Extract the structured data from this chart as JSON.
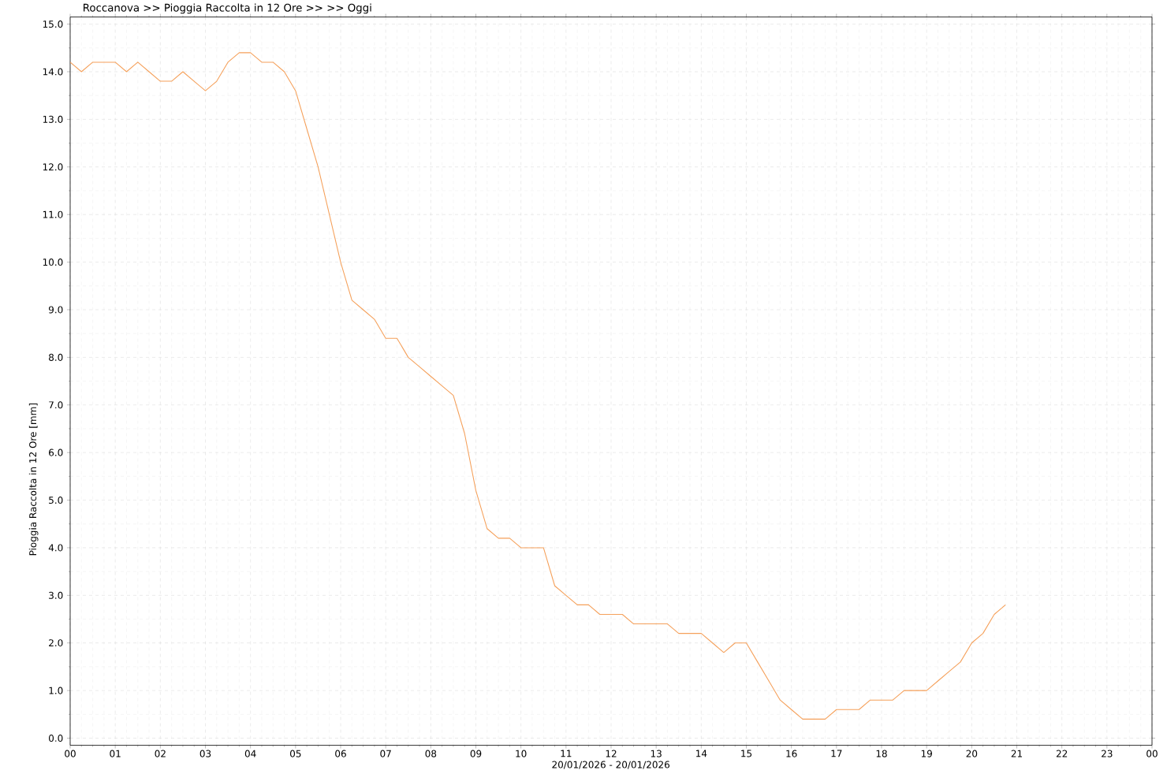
{
  "chart_data": {
    "type": "line",
    "title": "Roccanova >> Pioggia Raccolta in 12 Ore >>  >> Oggi",
    "xlabel": "20/01/2026 - 20/01/2026",
    "ylabel": "Pioggia Raccolta in 12 Ore [mm]",
    "x": [
      0,
      0.25,
      0.5,
      0.75,
      1,
      1.25,
      1.5,
      1.75,
      2,
      2.25,
      2.5,
      2.75,
      3,
      3.25,
      3.5,
      3.75,
      4,
      4.25,
      4.5,
      4.75,
      5,
      5.25,
      5.5,
      5.75,
      6,
      6.25,
      6.5,
      6.75,
      7,
      7.25,
      7.5,
      7.75,
      8,
      8.25,
      8.5,
      8.75,
      9,
      9.25,
      9.5,
      9.75,
      10,
      10.25,
      10.5,
      10.75,
      11,
      11.25,
      11.5,
      11.75,
      12,
      12.25,
      12.5,
      12.75,
      13,
      13.25,
      13.5,
      13.75,
      14,
      14.25,
      14.5,
      14.75,
      15,
      15.25,
      15.5,
      15.75,
      16,
      16.25,
      16.5,
      16.75,
      17,
      17.25,
      17.5,
      17.75,
      18,
      18.25,
      18.5,
      18.75,
      19,
      19.25,
      19.5,
      19.75,
      20,
      20.25,
      20.5,
      20.75
    ],
    "series": [
      {
        "color": "#f5a05a",
        "values": [
          14.2,
          14.0,
          14.2,
          14.2,
          14.2,
          14.0,
          14.2,
          14.0,
          13.8,
          13.8,
          14.0,
          13.8,
          13.6,
          13.8,
          14.2,
          14.4,
          14.4,
          14.2,
          14.2,
          14.0,
          13.6,
          12.8,
          12.0,
          11.0,
          10.0,
          9.2,
          9.0,
          8.8,
          8.4,
          8.4,
          8.0,
          7.8,
          7.6,
          7.4,
          7.2,
          6.4,
          5.2,
          4.4,
          4.2,
          4.2,
          4.0,
          4.0,
          4.0,
          3.2,
          3.0,
          2.8,
          2.8,
          2.6,
          2.6,
          2.6,
          2.4,
          2.4,
          2.4,
          2.4,
          2.2,
          2.2,
          2.2,
          2.0,
          1.8,
          2.0,
          2.0,
          1.6,
          1.2,
          0.8,
          0.6,
          0.4,
          0.4,
          0.4,
          0.6,
          0.6,
          0.6,
          0.8,
          0.8,
          0.8,
          1.0,
          1.0,
          1.0,
          1.2,
          1.4,
          1.6,
          2.0,
          2.2,
          2.6,
          2.8
        ]
      }
    ],
    "xlim": [
      0,
      24
    ],
    "xticks": [
      {
        "value": 0,
        "label": "00"
      },
      {
        "value": 1,
        "label": "01"
      },
      {
        "value": 2,
        "label": "02"
      },
      {
        "value": 3,
        "label": "03"
      },
      {
        "value": 4,
        "label": "04"
      },
      {
        "value": 5,
        "label": "05"
      },
      {
        "value": 6,
        "label": "06"
      },
      {
        "value": 7,
        "label": "07"
      },
      {
        "value": 8,
        "label": "08"
      },
      {
        "value": 9,
        "label": "09"
      },
      {
        "value": 10,
        "label": "10"
      },
      {
        "value": 11,
        "label": "11"
      },
      {
        "value": 12,
        "label": "12"
      },
      {
        "value": 13,
        "label": "13"
      },
      {
        "value": 14,
        "label": "14"
      },
      {
        "value": 15,
        "label": "15"
      },
      {
        "value": 16,
        "label": "16"
      },
      {
        "value": 17,
        "label": "17"
      },
      {
        "value": 18,
        "label": "18"
      },
      {
        "value": 19,
        "label": "19"
      },
      {
        "value": 20,
        "label": "20"
      },
      {
        "value": 21,
        "label": "21"
      },
      {
        "value": 22,
        "label": "22"
      },
      {
        "value": 23,
        "label": "23"
      },
      {
        "value": 24,
        "label": "00"
      }
    ],
    "ylim": [
      -0.15,
      15.15
    ],
    "yticks": [
      {
        "value": 0,
        "label": "0.0"
      },
      {
        "value": 1,
        "label": "1.0"
      },
      {
        "value": 2,
        "label": "2.0"
      },
      {
        "value": 3,
        "label": "3.0"
      },
      {
        "value": 4,
        "label": "4.0"
      },
      {
        "value": 5,
        "label": "5.0"
      },
      {
        "value": 6,
        "label": "6.0"
      },
      {
        "value": 7,
        "label": "7.0"
      },
      {
        "value": 8,
        "label": "8.0"
      },
      {
        "value": 9,
        "label": "9.0"
      },
      {
        "value": 10,
        "label": "10.0"
      },
      {
        "value": 11,
        "label": "11.0"
      },
      {
        "value": 12,
        "label": "12.0"
      },
      {
        "value": 13,
        "label": "13.0"
      },
      {
        "value": 14,
        "label": "14.0"
      },
      {
        "value": 15,
        "label": "15.0"
      }
    ],
    "grid": true
  }
}
